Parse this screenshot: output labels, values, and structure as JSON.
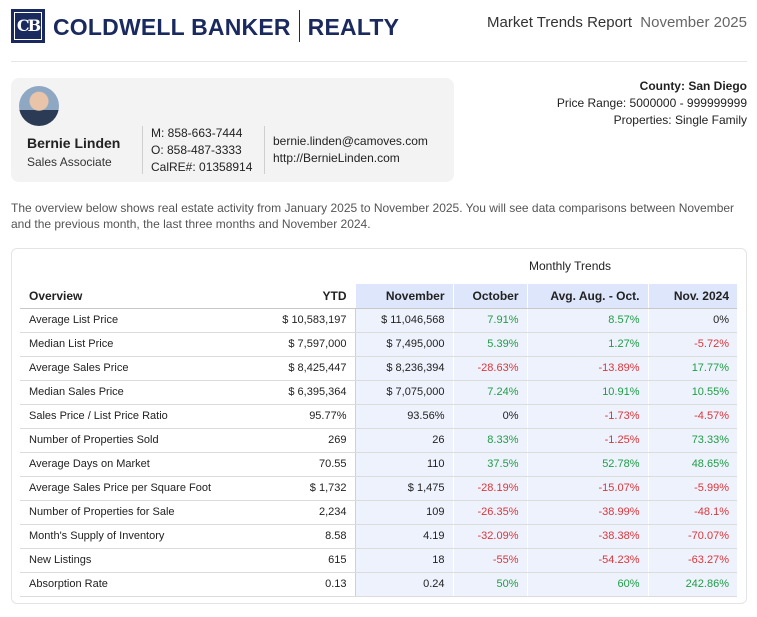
{
  "header": {
    "logo_text": "CB",
    "brand_left": "COLDWELL BANKER",
    "brand_right": "REALTY",
    "report_title": "Market Trends Report",
    "report_month": "November 2025"
  },
  "agent": {
    "name": "Bernie Linden",
    "role": "Sales Associate",
    "mobile": "M: 858-663-7444",
    "office": "O: 858-487-3333",
    "license": "CalRE#: 01358914",
    "email": "bernie.linden@camoves.com",
    "website": "http://BernieLinden.com"
  },
  "criteria": {
    "county": "County: San Diego",
    "price_range": "Price Range: 5000000 - 999999999",
    "properties": "Properties: Single Family"
  },
  "intro": "The overview below shows real estate activity from January 2025 to November 2025. You will see data comparisons between November and the previous month, the last three months and November 2024.",
  "table": {
    "group_label": "Monthly Trends",
    "columns": [
      "Overview",
      "YTD",
      "November",
      "October",
      "Avg. Aug. - Oct.",
      "Nov. 2024"
    ],
    "rows": [
      {
        "label": "Average List Price",
        "ytd": "$ 10,583,197",
        "nov": "$ 11,046,568",
        "oct": "7.91%",
        "avg": "8.57%",
        "prev": "0%"
      },
      {
        "label": "Median List Price",
        "ytd": "$ 7,597,000",
        "nov": "$ 7,495,000",
        "oct": "5.39%",
        "avg": "1.27%",
        "prev": "-5.72%"
      },
      {
        "label": "Average Sales Price",
        "ytd": "$ 8,425,447",
        "nov": "$ 8,236,394",
        "oct": "-28.63%",
        "avg": "-13.89%",
        "prev": "17.77%"
      },
      {
        "label": "Median Sales Price",
        "ytd": "$ 6,395,364",
        "nov": "$ 7,075,000",
        "oct": "7.24%",
        "avg": "10.91%",
        "prev": "10.55%"
      },
      {
        "label": "Sales Price / List Price Ratio",
        "ytd": "95.77%",
        "nov": "93.56%",
        "oct": "0%",
        "avg": "-1.73%",
        "prev": "-4.57%"
      },
      {
        "label": "Number of Properties Sold",
        "ytd": "269",
        "nov": "26",
        "oct": "8.33%",
        "avg": "-1.25%",
        "prev": "73.33%"
      },
      {
        "label": "Average Days on Market",
        "ytd": "70.55",
        "nov": "110",
        "oct": "37.5%",
        "avg": "52.78%",
        "prev": "48.65%"
      },
      {
        "label": "Average Sales Price per Square Foot",
        "ytd": "$ 1,732",
        "nov": "$ 1,475",
        "oct": "-28.19%",
        "avg": "-15.07%",
        "prev": "-5.99%"
      },
      {
        "label": "Number of Properties for Sale",
        "ytd": "2,234",
        "nov": "109",
        "oct": "-26.35%",
        "avg": "-38.99%",
        "prev": "-48.1%"
      },
      {
        "label": "Month's Supply of Inventory",
        "ytd": "8.58",
        "nov": "4.19",
        "oct": "-32.09%",
        "avg": "-38.38%",
        "prev": "-70.07%"
      },
      {
        "label": "New Listings",
        "ytd": "615",
        "nov": "18",
        "oct": "-55%",
        "avg": "-54.23%",
        "prev": "-63.27%"
      },
      {
        "label": "Absorption Rate",
        "ytd": "0.13",
        "nov": "0.24",
        "oct": "50%",
        "avg": "60%",
        "prev": "242.86%"
      }
    ]
  },
  "colors": {
    "brand": "#1b2a5e",
    "positive": "#1e9e45",
    "negative": "#d9373b",
    "header_shade": "#dde6fa",
    "cell_shade": "#eef2fc"
  },
  "icons": {
    "logo": "coldwell-banker-logo-icon"
  }
}
